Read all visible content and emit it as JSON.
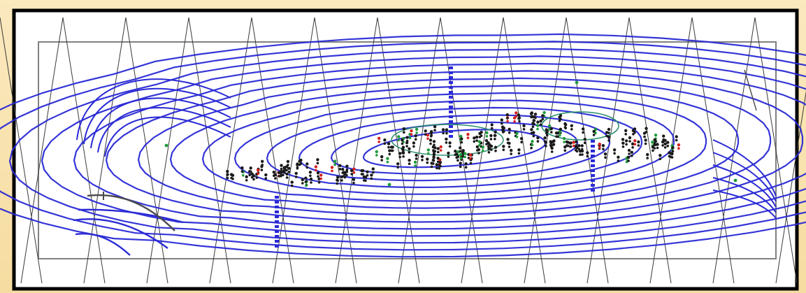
{
  "map": {
    "title": "",
    "colors": {
      "background": "#f8e2ad",
      "paper": "#ffffff",
      "frame": "#000000",
      "inner_border": "#808080",
      "grid": "#3a3a3a",
      "contour": "#2a2ad6",
      "fault": "#4a4a4a",
      "well_symbol": "#1a1a1a",
      "well_green": "#1f9c3a",
      "well_red": "#d42020",
      "accent_green": "#2a8f6a"
    },
    "features": [
      "structure-contour-lines",
      "triangulated-grid",
      "well-points",
      "fault-line",
      "inner-boundary"
    ]
  }
}
